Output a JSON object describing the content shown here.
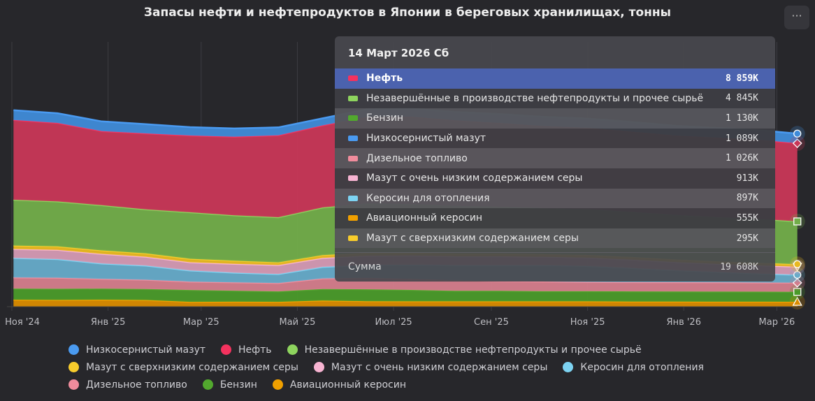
{
  "title": "Запасы нефти и нефтепродуктов в Японии в береговых хранилищах, тонны",
  "menu_icon": "ellipsis-icon",
  "menu_label": "···",
  "chart_data": {
    "type": "area",
    "stacked": true,
    "title": "Запасы нефти и нефтепродуктов в Японии в береговых хранилищах, тонны",
    "unit": "K",
    "ylim": [
      0,
      30000
    ],
    "grid": "vertical lines at month ticks",
    "legend_placement": "bottom",
    "x_ticks": [
      "Ноя '24",
      "Янв '25",
      "Мар '25",
      "Май '25",
      "Июл '25",
      "Сен '25",
      "Ноя '25",
      "Янв '26",
      "Мар '26"
    ],
    "x_tick_dates": [
      "2024-11-01",
      "2025-01-01",
      "2025-03-01",
      "2025-05-01",
      "2025-07-01",
      "2025-09-01",
      "2025-11-01",
      "2026-01-01",
      "2026-03-01"
    ],
    "x": [
      "2024-11-02",
      "2024-11-30",
      "2024-12-28",
      "2025-01-25",
      "2025-02-22",
      "2025-03-22",
      "2025-04-19",
      "2025-05-17",
      "2025-06-14",
      "2025-07-12",
      "2025-08-09",
      "2025-09-06",
      "2025-10-04",
      "2025-11-01",
      "2025-11-29",
      "2025-12-27",
      "2026-01-24",
      "2026-02-21",
      "2026-03-14"
    ],
    "series": [
      {
        "name": "Авиационный керосин",
        "color": "#d98b00",
        "line": "#f0a000",
        "marker": "triangle-up",
        "values": [
          790,
          760,
          790,
          750,
          550,
          560,
          550,
          700,
          620,
          600,
          600,
          600,
          600,
          600,
          580,
          570,
          560,
          560,
          555
        ]
      },
      {
        "name": "Бензин",
        "color": "#4a9a2a",
        "line": "#52a82e",
        "marker": "square",
        "values": [
          1260,
          1270,
          1260,
          1250,
          1340,
          1250,
          1180,
          1300,
          1350,
          1300,
          1200,
          1200,
          1150,
          1150,
          1150,
          1150,
          1150,
          1140,
          1130
        ]
      },
      {
        "name": "Дизельное топливо",
        "color": "#d57d8c",
        "line": "#f08c9c",
        "marker": "diamond",
        "values": [
          1260,
          1250,
          1100,
          1050,
          940,
          940,
          940,
          1200,
          1300,
          1250,
          1200,
          1100,
          1100,
          1050,
          1050,
          1050,
          1050,
          1030,
          1026
        ]
      },
      {
        "name": "Керосин для отопления",
        "color": "#66abc9",
        "line": "#7dd3f2",
        "marker": "circle",
        "values": [
          2200,
          2100,
          1730,
          1600,
          1260,
          1100,
          1020,
          1300,
          1450,
          1600,
          1700,
          1800,
          1850,
          1800,
          1600,
          1350,
          1150,
          1000,
          897
        ]
      },
      {
        "name": "Мазут с очень низким содержанием серы",
        "color": "#d59ab4",
        "line": "#f7b4d2",
        "marker": "triangle-down",
        "values": [
          1020,
          1050,
          1100,
          1000,
          940,
          1000,
          1020,
          1020,
          1050,
          1050,
          1000,
          1000,
          950,
          950,
          950,
          920,
          920,
          920,
          913
        ]
      },
      {
        "name": "Мазут с сверхнизким содержанием серы",
        "color": "#e8b820",
        "line": "#f8cc2c",
        "marker": "circle",
        "values": [
          390,
          390,
          390,
          380,
          390,
          350,
          310,
          320,
          330,
          330,
          320,
          320,
          310,
          310,
          300,
          300,
          300,
          300,
          295
        ]
      },
      {
        "name": "Незавершённые в производстве нефтепродукты и прочее сырьё",
        "color": "#72ad4a",
        "line": "#8ed45e",
        "marker": "square",
        "values": [
          5190,
          5100,
          5120,
          5000,
          5270,
          5150,
          5110,
          5400,
          5600,
          5500,
          5400,
          5300,
          5200,
          5200,
          5100,
          5050,
          5000,
          4950,
          4845
        ]
      },
      {
        "name": "Нефть",
        "color": "#c83757",
        "line": "#f4325e",
        "marker": "diamond",
        "values": [
          9050,
          8900,
          8400,
          8600,
          8700,
          8900,
          9290,
          9300,
          9800,
          9900,
          9700,
          9500,
          9300,
          9200,
          9100,
          9000,
          9000,
          8950,
          8859
        ]
      },
      {
        "name": "Низкосернистый мазут",
        "color": "#3f8bd8",
        "line": "#4a9af0",
        "marker": "circle",
        "values": [
          1100,
          1100,
          1100,
          1050,
          950,
          940,
          900,
          800,
          850,
          900,
          950,
          1000,
          1050,
          1050,
          1100,
          1100,
          1100,
          1100,
          1089
        ]
      }
    ]
  },
  "tooltip": {
    "date": "14 Март 2026 Сб",
    "rows": [
      {
        "name": "Нефть",
        "value": "8 859K",
        "color": "#f4325e",
        "highlighted": true
      },
      {
        "name": "Незавершённые в производстве нефтепродукты и прочее сырьё",
        "value": "4 845K",
        "color": "#8ed45e"
      },
      {
        "name": "Бензин",
        "value": "1 130K",
        "color": "#52a82e"
      },
      {
        "name": "Низкосернистый мазут",
        "value": "1 089K",
        "color": "#4a9af0"
      },
      {
        "name": "Дизельное топливо",
        "value": "1 026K",
        "color": "#f08c9c"
      },
      {
        "name": "Мазут с очень низким содержанием серы",
        "value": "913K",
        "color": "#f7b4d2"
      },
      {
        "name": "Керосин для отопления",
        "value": "897K",
        "color": "#7dd3f2"
      },
      {
        "name": "Авиационный керосин",
        "value": "555K",
        "color": "#f0a000"
      },
      {
        "name": "Мазут с сверхнизким содержанием серы",
        "value": "295K",
        "color": "#f8cc2c"
      }
    ],
    "sum_label": "Сумма",
    "sum_value": "19 608K"
  },
  "legend": [
    [
      {
        "name": "Низкосернистый мазут",
        "color": "#4a9af0"
      },
      {
        "name": "Нефть",
        "color": "#f4325e"
      },
      {
        "name": "Незавершённые в производстве нефтепродукты и прочее сырьё",
        "color": "#8ed45e"
      }
    ],
    [
      {
        "name": "Мазут с сверхнизким содержанием серы",
        "color": "#f8cc2c"
      },
      {
        "name": "Мазут с очень низким содержанием серы",
        "color": "#f7b4d2"
      },
      {
        "name": "Керосин для отопления",
        "color": "#7dd3f2"
      }
    ],
    [
      {
        "name": "Дизельное топливо",
        "color": "#f08c9c"
      },
      {
        "name": "Бензин",
        "color": "#52a82e"
      },
      {
        "name": "Авиационный керосин",
        "color": "#f0a000"
      }
    ]
  ]
}
